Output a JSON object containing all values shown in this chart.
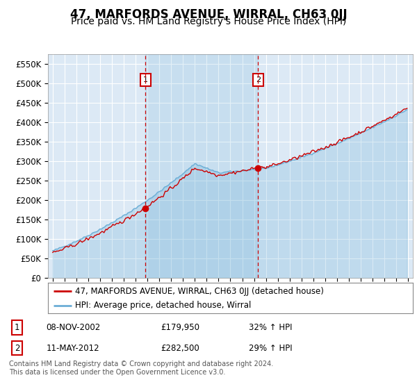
{
  "title": "47, MARFORDS AVENUE, WIRRAL, CH63 0JJ",
  "subtitle": "Price paid vs. HM Land Registry's House Price Index (HPI)",
  "ylim": [
    0,
    575000
  ],
  "yticks": [
    0,
    50000,
    100000,
    150000,
    200000,
    250000,
    300000,
    350000,
    400000,
    450000,
    500000,
    550000
  ],
  "ytick_labels": [
    "£0",
    "£50K",
    "£100K",
    "£150K",
    "£200K",
    "£250K",
    "£300K",
    "£350K",
    "£400K",
    "£450K",
    "£500K",
    "£550K"
  ],
  "background_color": "#ffffff",
  "plot_bg_color": "#dce9f5",
  "grid_color": "#ffffff",
  "sale1_price": 179950,
  "sale2_price": 282500,
  "sale_color": "#cc0000",
  "hpi_color": "#6baed6",
  "vline_color": "#cc0000",
  "legend_entries": [
    "47, MARFORDS AVENUE, WIRRAL, CH63 0JJ (detached house)",
    "HPI: Average price, detached house, Wirral"
  ],
  "table_rows": [
    {
      "num": "1",
      "date": "08-NOV-2002",
      "price": "£179,950",
      "pct": "32% ↑ HPI"
    },
    {
      "num": "2",
      "date": "11-MAY-2012",
      "price": "£282,500",
      "pct": "29% ↑ HPI"
    }
  ],
  "footer": "Contains HM Land Registry data © Crown copyright and database right 2024.\nThis data is licensed under the Open Government Licence v3.0.",
  "title_fontsize": 12,
  "subtitle_fontsize": 10
}
